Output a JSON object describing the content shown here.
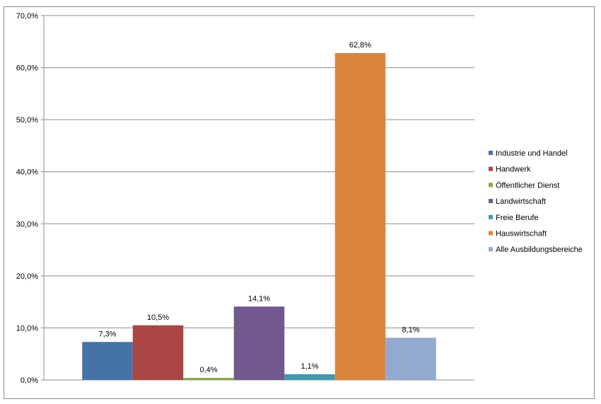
{
  "chart_data": {
    "type": "bar",
    "title": "",
    "xlabel": "",
    "ylabel": "",
    "ylim": [
      0,
      70
    ],
    "y_ticks": [
      "0,0%",
      "10,0%",
      "20,0%",
      "30,0%",
      "40,0%",
      "50,0%",
      "60,0%",
      "70,0%"
    ],
    "grid": true,
    "legend_position": "right",
    "series": [
      {
        "name": "Industrie und Handel",
        "value": 7.3,
        "label": "7,3%",
        "color": "#4572A7"
      },
      {
        "name": "Handwerk",
        "value": 10.5,
        "label": "10,5%",
        "color": "#AA4643"
      },
      {
        "name": "Öffentlicher Dienst",
        "value": 0.4,
        "label": "0,4%",
        "color": "#89A54E"
      },
      {
        "name": "Landwirtschaft",
        "value": 14.1,
        "label": "14,1%",
        "color": "#71588F"
      },
      {
        "name": "Freie Berufe",
        "value": 1.1,
        "label": "1,1%",
        "color": "#4198AF"
      },
      {
        "name": "Hauswirtschaft",
        "value": 62.8,
        "label": "62,8%",
        "color": "#DB843D"
      },
      {
        "name": "Alle Ausbildungsbereiche",
        "value": 8.1,
        "label": "8,1%",
        "color": "#93A9CF"
      }
    ]
  }
}
